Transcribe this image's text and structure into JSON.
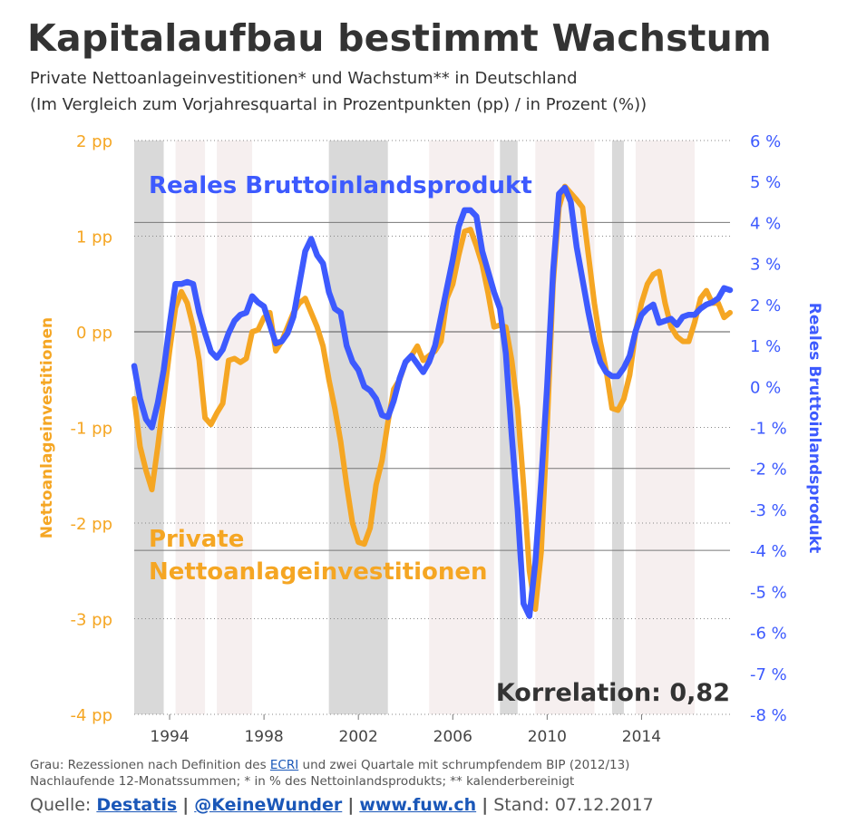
{
  "title": "Kapitalaufbau bestimmt Wachstum",
  "subtitle1": "Private Nettoanlageinvestitionen* und Wachstum** in Deutschland",
  "subtitle2": "(Im Vergleich zum Vorjahresquartal in Prozentpunkten (pp) / in Prozent (%))",
  "footnote1": {
    "pre": "Grau: Rezessionen nach Definition des ",
    "link": "ECRI",
    "post": " und zwei Quartale mit schrumpfendem BIP (2012/13)"
  },
  "footnote2": "Nachlaufende 12-Monatssummen; * in % des Nettoinlandsprodukts; ** kalenderbereinigt",
  "source": {
    "label": "Quelle: ",
    "items": [
      "Destatis",
      "@KeineWunder",
      "www.fuw.ch"
    ],
    "separator": "|",
    "stand": "Stand: 07.12.2017"
  },
  "chart_data": {
    "type": "line",
    "colors": {
      "invest": "#f5a623",
      "gdp": "#3d5afe",
      "recession": "#d9d9d9",
      "band": "#f6efef",
      "text": "#333333"
    },
    "x_ticks": [
      "1994",
      "1998",
      "2002",
      "2006",
      "2010",
      "2014"
    ],
    "x_range": [
      1992.5,
      2017.75
    ],
    "y_left": {
      "label": "Nettoanlageinvestitionen",
      "range": [
        -4,
        2
      ],
      "ticks": [
        "2 pp",
        "1 pp",
        "0 pp",
        "-1 pp",
        "-2 pp",
        "-3 pp",
        "-4 pp"
      ]
    },
    "y_right": {
      "label": "Reales Bruttoinlandsprodukt",
      "range": [
        -8,
        6
      ],
      "ticks": [
        "6 %",
        "5 %",
        "4 %",
        "3 %",
        "2 %",
        "1 %",
        "0 %",
        "-1 %",
        "-2 %",
        "-3 %",
        "-4 %",
        "-5 %",
        "-6 %",
        "-7 %",
        "-8 %"
      ]
    },
    "recessions": [
      [
        1992.5,
        1993.75
      ],
      [
        2000.75,
        2003.25
      ],
      [
        2008.0,
        2008.75
      ],
      [
        2012.75,
        2013.25
      ]
    ],
    "bands": [
      [
        1994.25,
        1995.5
      ],
      [
        1996.0,
        1997.5
      ],
      [
        2005.0,
        2007.75
      ],
      [
        2009.5,
        2012.0
      ],
      [
        2013.75,
        2016.25
      ]
    ],
    "annotations": {
      "gdp": "Reales Bruttoinlandsprodukt",
      "invest_line1": "Private",
      "invest_line2": "Nettoanlageinvestitionen",
      "correlation": "Korrelation: 0,82"
    },
    "series": [
      {
        "name": "Private Nettoanlageinvestitionen",
        "axis": "left",
        "points": [
          [
            1992.5,
            -0.7
          ],
          [
            1992.75,
            -1.2
          ],
          [
            1993.0,
            -1.45
          ],
          [
            1993.25,
            -1.65
          ],
          [
            1993.5,
            -1.2
          ],
          [
            1993.75,
            -0.7
          ],
          [
            1994.0,
            -0.2
          ],
          [
            1994.25,
            0.25
          ],
          [
            1994.5,
            0.42
          ],
          [
            1994.75,
            0.3
          ],
          [
            1995.0,
            0.05
          ],
          [
            1995.25,
            -0.3
          ],
          [
            1995.5,
            -0.9
          ],
          [
            1995.75,
            -0.97
          ],
          [
            1996.0,
            -0.85
          ],
          [
            1996.25,
            -0.75
          ],
          [
            1996.5,
            -0.3
          ],
          [
            1996.75,
            -0.28
          ],
          [
            1997.0,
            -0.32
          ],
          [
            1997.25,
            -0.28
          ],
          [
            1997.5,
            0.0
          ],
          [
            1997.75,
            0.02
          ],
          [
            1998.0,
            0.15
          ],
          [
            1998.25,
            0.2
          ],
          [
            1998.5,
            -0.2
          ],
          [
            1998.75,
            -0.1
          ],
          [
            1999.0,
            0.05
          ],
          [
            1999.25,
            0.2
          ],
          [
            1999.5,
            0.3
          ],
          [
            1999.75,
            0.35
          ],
          [
            2000.0,
            0.2
          ],
          [
            2000.25,
            0.05
          ],
          [
            2000.5,
            -0.15
          ],
          [
            2000.75,
            -0.5
          ],
          [
            2001.0,
            -0.8
          ],
          [
            2001.25,
            -1.15
          ],
          [
            2001.5,
            -1.6
          ],
          [
            2001.75,
            -2.0
          ],
          [
            2002.0,
            -2.2
          ],
          [
            2002.25,
            -2.22
          ],
          [
            2002.5,
            -2.05
          ],
          [
            2002.75,
            -1.6
          ],
          [
            2003.0,
            -1.35
          ],
          [
            2003.25,
            -0.95
          ],
          [
            2003.5,
            -0.6
          ],
          [
            2003.75,
            -0.5
          ],
          [
            2004.0,
            -0.32
          ],
          [
            2004.25,
            -0.25
          ],
          [
            2004.5,
            -0.15
          ],
          [
            2004.75,
            -0.3
          ],
          [
            2005.0,
            -0.25
          ],
          [
            2005.25,
            -0.2
          ],
          [
            2005.5,
            -0.1
          ],
          [
            2005.75,
            0.35
          ],
          [
            2006.0,
            0.5
          ],
          [
            2006.25,
            0.8
          ],
          [
            2006.5,
            1.05
          ],
          [
            2006.75,
            1.07
          ],
          [
            2007.0,
            0.9
          ],
          [
            2007.25,
            0.7
          ],
          [
            2007.5,
            0.4
          ],
          [
            2007.75,
            0.05
          ],
          [
            2008.0,
            0.07
          ],
          [
            2008.25,
            0.05
          ],
          [
            2008.5,
            -0.3
          ],
          [
            2008.75,
            -0.8
          ],
          [
            2009.0,
            -1.6
          ],
          [
            2009.25,
            -2.5
          ],
          [
            2009.5,
            -2.9
          ],
          [
            2009.75,
            -2.3
          ],
          [
            2010.0,
            -1.0
          ],
          [
            2010.25,
            0.5
          ],
          [
            2010.5,
            1.3
          ],
          [
            2010.75,
            1.52
          ],
          [
            2011.0,
            1.45
          ],
          [
            2011.25,
            1.38
          ],
          [
            2011.5,
            1.3
          ],
          [
            2011.75,
            0.8
          ],
          [
            2012.0,
            0.3
          ],
          [
            2012.25,
            -0.1
          ],
          [
            2012.5,
            -0.4
          ],
          [
            2012.75,
            -0.8
          ],
          [
            2013.0,
            -0.82
          ],
          [
            2013.25,
            -0.7
          ],
          [
            2013.5,
            -0.45
          ],
          [
            2013.75,
            0.0
          ],
          [
            2014.0,
            0.3
          ],
          [
            2014.25,
            0.5
          ],
          [
            2014.5,
            0.6
          ],
          [
            2014.75,
            0.63
          ],
          [
            2015.0,
            0.3
          ],
          [
            2015.25,
            0.05
          ],
          [
            2015.5,
            -0.05
          ],
          [
            2015.75,
            -0.1
          ],
          [
            2016.0,
            -0.1
          ],
          [
            2016.25,
            0.1
          ],
          [
            2016.5,
            0.35
          ],
          [
            2016.75,
            0.43
          ],
          [
            2017.0,
            0.3
          ],
          [
            2017.25,
            0.3
          ],
          [
            2017.5,
            0.15
          ],
          [
            2017.75,
            0.2
          ]
        ]
      },
      {
        "name": "Reales Bruttoinlandsprodukt",
        "axis": "right",
        "points": [
          [
            1992.5,
            0.5
          ],
          [
            1992.75,
            -0.3
          ],
          [
            1993.0,
            -0.8
          ],
          [
            1993.25,
            -1.0
          ],
          [
            1993.5,
            -0.4
          ],
          [
            1993.75,
            0.4
          ],
          [
            1994.0,
            1.5
          ],
          [
            1994.25,
            2.5
          ],
          [
            1994.5,
            2.5
          ],
          [
            1994.75,
            2.55
          ],
          [
            1995.0,
            2.5
          ],
          [
            1995.25,
            1.8
          ],
          [
            1995.5,
            1.3
          ],
          [
            1995.75,
            0.85
          ],
          [
            1996.0,
            0.7
          ],
          [
            1996.25,
            0.9
          ],
          [
            1996.5,
            1.3
          ],
          [
            1996.75,
            1.6
          ],
          [
            1997.0,
            1.75
          ],
          [
            1997.25,
            1.8
          ],
          [
            1997.5,
            2.2
          ],
          [
            1997.75,
            2.05
          ],
          [
            1998.0,
            1.95
          ],
          [
            1998.25,
            1.5
          ],
          [
            1998.5,
            1.05
          ],
          [
            1998.75,
            1.1
          ],
          [
            1999.0,
            1.3
          ],
          [
            1999.25,
            1.7
          ],
          [
            1999.5,
            2.5
          ],
          [
            1999.75,
            3.3
          ],
          [
            2000.0,
            3.6
          ],
          [
            2000.25,
            3.2
          ],
          [
            2000.5,
            3.0
          ],
          [
            2000.75,
            2.3
          ],
          [
            2001.0,
            1.9
          ],
          [
            2001.25,
            1.8
          ],
          [
            2001.5,
            1.0
          ],
          [
            2001.75,
            0.6
          ],
          [
            2002.0,
            0.4
          ],
          [
            2002.25,
            0.0
          ],
          [
            2002.5,
            -0.1
          ],
          [
            2002.75,
            -0.3
          ],
          [
            2003.0,
            -0.7
          ],
          [
            2003.25,
            -0.75
          ],
          [
            2003.5,
            -0.35
          ],
          [
            2003.75,
            0.2
          ],
          [
            2004.0,
            0.6
          ],
          [
            2004.25,
            0.75
          ],
          [
            2004.5,
            0.55
          ],
          [
            2004.75,
            0.35
          ],
          [
            2005.0,
            0.6
          ],
          [
            2005.25,
            1.0
          ],
          [
            2005.5,
            1.7
          ],
          [
            2005.75,
            2.4
          ],
          [
            2006.0,
            3.1
          ],
          [
            2006.25,
            3.9
          ],
          [
            2006.5,
            4.3
          ],
          [
            2006.75,
            4.3
          ],
          [
            2007.0,
            4.15
          ],
          [
            2007.25,
            3.3
          ],
          [
            2007.5,
            2.8
          ],
          [
            2007.75,
            2.3
          ],
          [
            2008.0,
            1.9
          ],
          [
            2008.25,
            0.8
          ],
          [
            2008.5,
            -1.2
          ],
          [
            2008.75,
            -3.0
          ],
          [
            2009.0,
            -5.3
          ],
          [
            2009.25,
            -5.6
          ],
          [
            2009.5,
            -4.3
          ],
          [
            2009.75,
            -2.3
          ],
          [
            2010.0,
            0.0
          ],
          [
            2010.25,
            2.8
          ],
          [
            2010.5,
            4.7
          ],
          [
            2010.75,
            4.85
          ],
          [
            2011.0,
            4.5
          ],
          [
            2011.25,
            3.4
          ],
          [
            2011.5,
            2.6
          ],
          [
            2011.75,
            1.8
          ],
          [
            2012.0,
            1.1
          ],
          [
            2012.25,
            0.6
          ],
          [
            2012.5,
            0.35
          ],
          [
            2012.75,
            0.25
          ],
          [
            2013.0,
            0.25
          ],
          [
            2013.25,
            0.45
          ],
          [
            2013.5,
            0.75
          ],
          [
            2013.75,
            1.35
          ],
          [
            2014.0,
            1.75
          ],
          [
            2014.25,
            1.9
          ],
          [
            2014.5,
            2.0
          ],
          [
            2014.75,
            1.55
          ],
          [
            2015.0,
            1.6
          ],
          [
            2015.25,
            1.65
          ],
          [
            2015.5,
            1.5
          ],
          [
            2015.75,
            1.7
          ],
          [
            2016.0,
            1.75
          ],
          [
            2016.25,
            1.75
          ],
          [
            2016.5,
            1.9
          ],
          [
            2016.75,
            2.0
          ],
          [
            2017.0,
            2.05
          ],
          [
            2017.25,
            2.15
          ],
          [
            2017.5,
            2.4
          ],
          [
            2017.75,
            2.35
          ]
        ]
      }
    ]
  }
}
